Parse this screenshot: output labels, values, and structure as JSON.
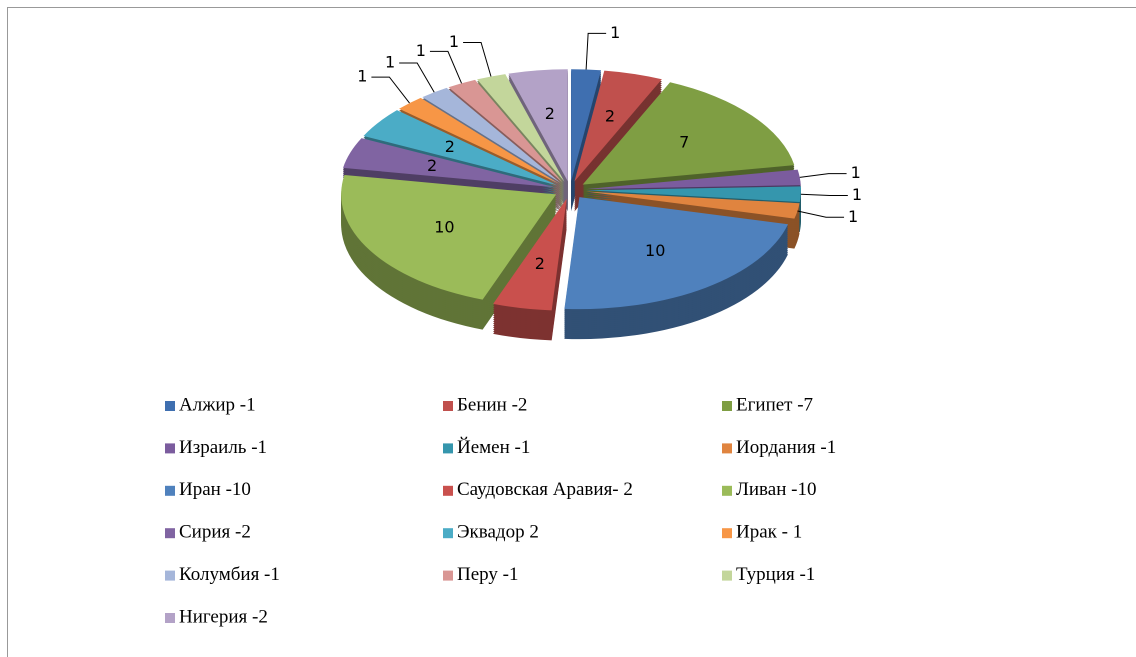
{
  "chart_data": {
    "type": "pie",
    "categories": [
      "Алжир -1",
      "Бенин -2",
      "Египет -7",
      "Израиль -1",
      "Йемен -1",
      "Иордания -1",
      "Иран -10",
      "Саудовская Аравия- 2",
      "Ливан -10",
      "Сирия -2",
      "Эквадор 2",
      "Ирак - 1",
      "Колумбия -1",
      "Перу -1",
      "Турция -1",
      "Нигерия -2"
    ],
    "values": [
      1,
      2,
      7,
      1,
      1,
      1,
      10,
      2,
      10,
      2,
      2,
      1,
      1,
      1,
      1,
      2
    ],
    "colors": [
      "#3f6fb0",
      "#c0504d",
      "#7f9e43",
      "#7b5c9e",
      "#3596ad",
      "#e0843f",
      "#4f81bd",
      "#c9504d",
      "#9bbb59",
      "#8064a2",
      "#4bacc6",
      "#f79646",
      "#a5b6da",
      "#d99694",
      "#c3d69b",
      "#b3a2c7"
    ],
    "legend": "bottom"
  }
}
